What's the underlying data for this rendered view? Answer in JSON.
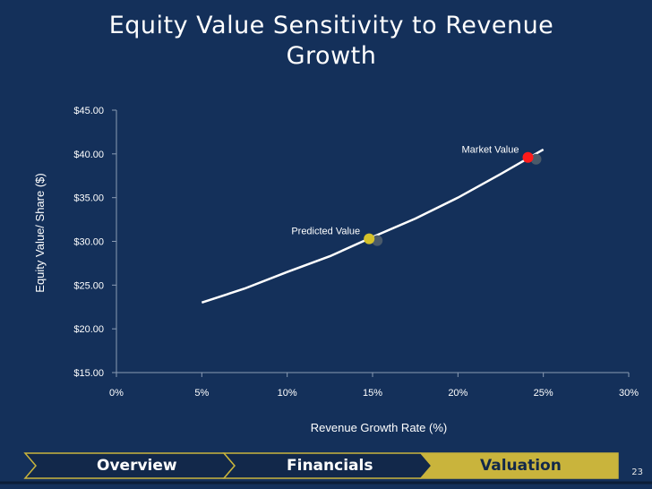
{
  "slide": {
    "title_line1": "Equity Value Sensitivity to Revenue",
    "title_line2": "Growth",
    "page_number": "23"
  },
  "nav": {
    "tabs": [
      {
        "label": "Overview",
        "active": false
      },
      {
        "label": "Financials",
        "active": false
      },
      {
        "label": "Valuation",
        "active": true
      }
    ]
  },
  "colors": {
    "background": "#14305a",
    "line": "#ffffff",
    "market_point": "#ff1a1a",
    "predicted_point": "#d4c12a",
    "shadow_point": "#4a5a6a",
    "nav_dark": "#12284a",
    "nav_gold": "#c9b43c"
  },
  "chart_data": {
    "type": "line",
    "xlabel": "Revenue Growth Rate (%)",
    "ylabel": "Equity Value/ Share ($)",
    "xlim": [
      0,
      30
    ],
    "ylim": [
      15,
      45
    ],
    "x_ticks": [
      0,
      5,
      10,
      15,
      20,
      25,
      30
    ],
    "x_tick_labels": [
      "0%",
      "5%",
      "10%",
      "15%",
      "20%",
      "25%",
      "30%"
    ],
    "y_ticks": [
      15,
      20,
      25,
      30,
      35,
      40,
      45
    ],
    "y_tick_labels": [
      "$15.00",
      "$20.00",
      "$25.00",
      "$30.00",
      "$35.00",
      "$40.00",
      "$45.00"
    ],
    "grid": false,
    "series": [
      {
        "x": [
          5,
          7.5,
          10,
          12.5,
          15,
          17.5,
          20,
          22.5,
          25
        ],
        "y": [
          23.0,
          24.6,
          26.5,
          28.3,
          30.5,
          32.6,
          35.0,
          37.7,
          40.5
        ]
      }
    ],
    "points": [
      {
        "label": "Predicted Value",
        "x": 14.8,
        "y": 30.3,
        "color": "#d4c12a"
      },
      {
        "label": "Market Value",
        "x": 24.1,
        "y": 39.6,
        "color": "#ff1a1a"
      }
    ]
  }
}
